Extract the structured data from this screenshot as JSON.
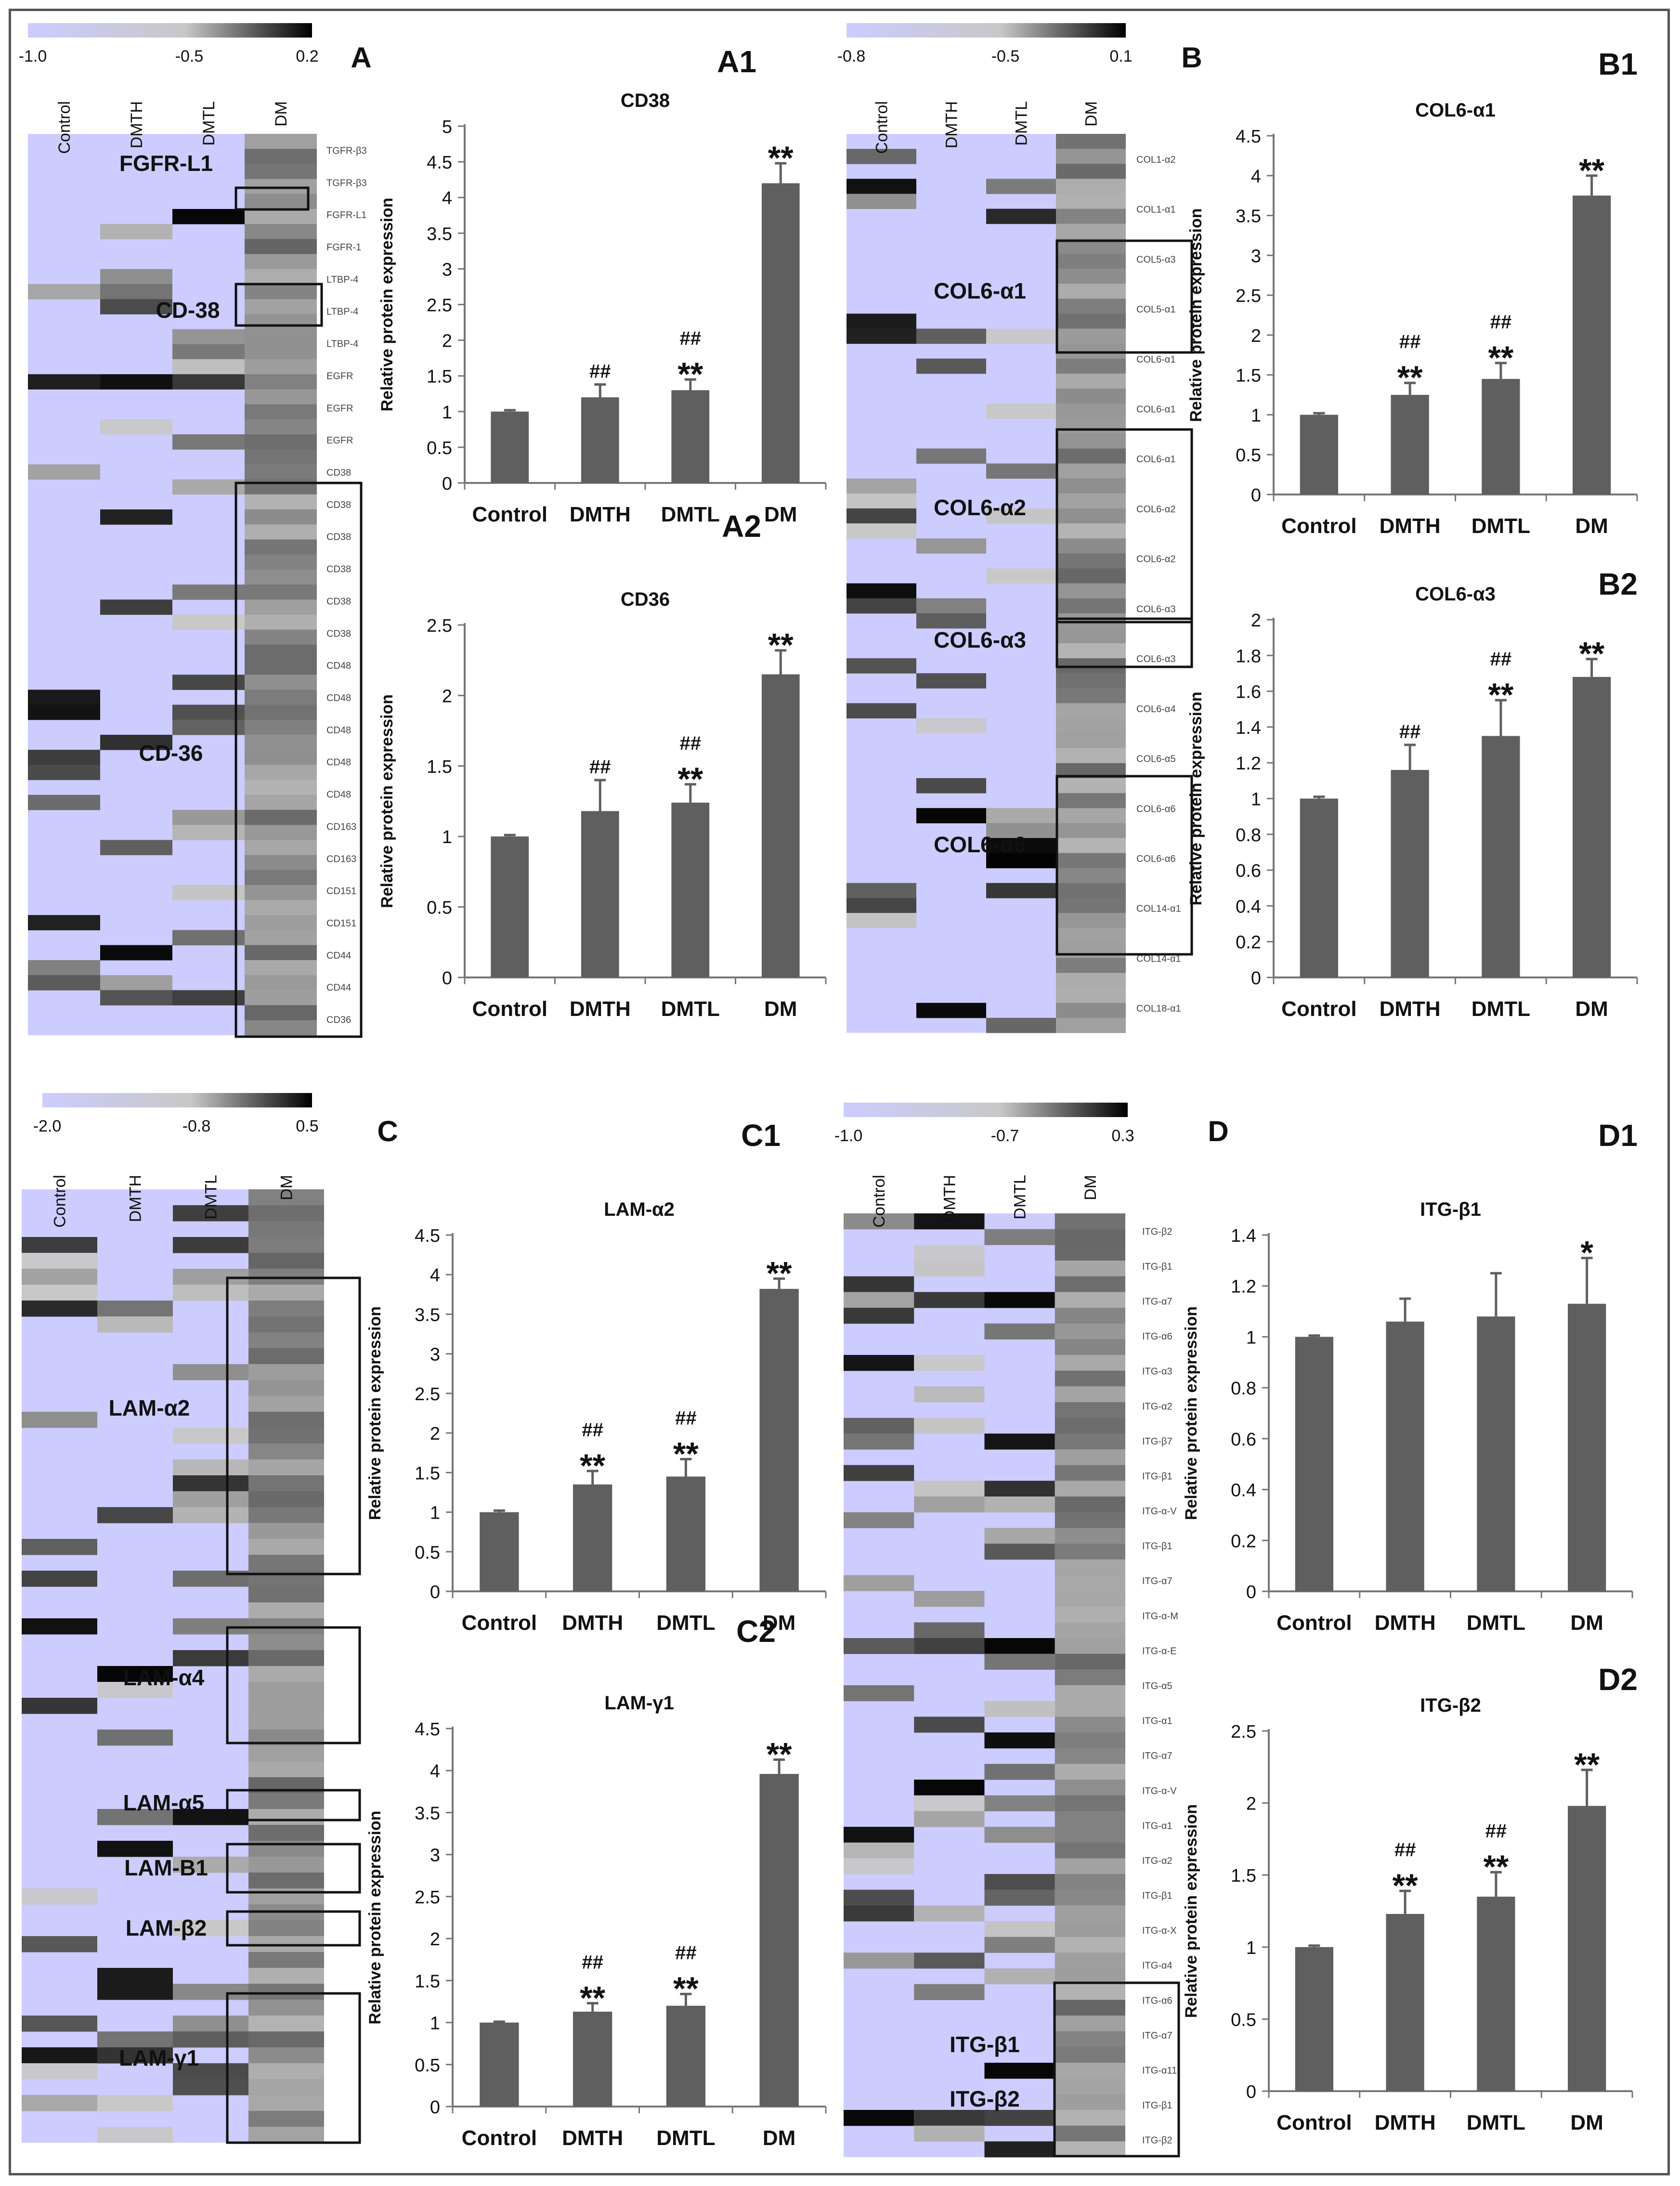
{
  "groups": [
    "Control",
    "DMTH",
    "DMTL",
    "DM"
  ],
  "colors": {
    "bar": "#5f5f5f",
    "axis": "#777777",
    "low": "#ccccff",
    "mid": "#c8c8c8",
    "high": "#000000",
    "text": "#111111"
  },
  "y_axis_label": "Relative protein expression",
  "panel_letters": {
    "A": "A",
    "B": "B",
    "C": "C",
    "D": "D"
  },
  "heatmaps": [
    {
      "id": "A",
      "scale": [
        "-1.0",
        "-0.5",
        "0.2"
      ],
      "boxes": [
        "FGFR-L1",
        "CD-38",
        "CD-36"
      ],
      "rows": [
        "TGFR-β3",
        "TGFR-β3",
        "FGFR-L1",
        "FGFR-1",
        "LTBP-4",
        "LTBP-4",
        "LTBP-4",
        "EGFR",
        "EGFR",
        "EGFR",
        "CD38",
        "CD38",
        "CD38",
        "CD38",
        "CD38",
        "CD38",
        "CD48",
        "CD48",
        "CD48",
        "CD48",
        "CD48",
        "CD163",
        "CD163",
        "CD151",
        "CD151",
        "CD44",
        "CD44",
        "CD36"
      ]
    },
    {
      "id": "B",
      "scale": [
        "-0.8",
        "-0.5",
        "0.1"
      ],
      "boxes": [
        "COL6-α1",
        "COL6-α2",
        "COL6-α3",
        "COL6-α6"
      ],
      "rows": [
        "COL1-α2",
        "COL1-α1",
        "COL5-α3",
        "COL5-α1",
        "COL6-α1",
        "COL6-α1",
        "COL6-α1",
        "COL6-α2",
        "COL6-α2",
        "COL6-α3",
        "COL6-α3",
        "COL6-α4",
        "COL6-α5",
        "COL6-α6",
        "COL6-α6",
        "COL14-α1",
        "COL14-α1",
        "COL18-α1"
      ]
    },
    {
      "id": "C",
      "scale": [
        "-2.0",
        "-0.8",
        "0.5"
      ],
      "boxes": [
        "LAM-α2",
        "LAM-α4",
        "LAM-α5",
        "LAM-B1",
        "LAM-β2",
        "LAM-γ1"
      ],
      "rows": []
    },
    {
      "id": "D",
      "scale": [
        "-1.0",
        "-0.7",
        "0.3"
      ],
      "boxes": [
        "ITG-β1",
        "ITG-β2"
      ],
      "rows": [
        "ITG-β2",
        "ITG-β1",
        "ITG-α7",
        "ITG-α6",
        "ITG-α3",
        "ITG-α2",
        "ITG-β7",
        "ITG-β1",
        "ITG-α-V",
        "ITG-β1",
        "ITG-α7",
        "ITG-α-M",
        "ITG-α-E",
        "ITG-α5",
        "ITG-α1",
        "ITG-α7",
        "ITG-α-V",
        "ITG-α1",
        "ITG-α2",
        "ITG-β1",
        "ITG-α-X",
        "ITG-α4",
        "ITG-α6",
        "ITG-α7",
        "ITG-α11",
        "ITG-β1",
        "ITG-β2"
      ]
    }
  ],
  "chart_data": [
    {
      "id": "A1",
      "type": "bar",
      "title": "CD38",
      "categories": [
        "Control",
        "DMTH",
        "DMTL",
        "DM"
      ],
      "values": [
        1.0,
        1.2,
        1.3,
        4.2
      ],
      "errors": [
        0.02,
        0.18,
        0.15,
        0.28
      ],
      "ylim": [
        0,
        5
      ],
      "yticks": [
        "0",
        "0.5",
        "1",
        "1.5",
        "2",
        "2.5",
        "3",
        "3.5",
        "4",
        "4.5",
        "5"
      ],
      "annotations": [
        [],
        [
          "##"
        ],
        [
          "##",
          "**"
        ],
        [
          "**"
        ]
      ],
      "ylabel": "Relative protein expression"
    },
    {
      "id": "A2",
      "type": "bar",
      "title": "CD36",
      "categories": [
        "Control",
        "DMTH",
        "DMTL",
        "DM"
      ],
      "values": [
        1.0,
        1.18,
        1.24,
        2.15
      ],
      "errors": [
        0.01,
        0.22,
        0.13,
        0.17
      ],
      "ylim": [
        0,
        2.5
      ],
      "yticks": [
        "0",
        "0.5",
        "1",
        "1.5",
        "2",
        "2.5"
      ],
      "annotations": [
        [],
        [
          "##"
        ],
        [
          "##",
          "**"
        ],
        [
          "**"
        ]
      ],
      "ylabel": "Relative protein expression"
    },
    {
      "id": "B1",
      "type": "bar",
      "title": "COL6-α1",
      "categories": [
        "Control",
        "DMTH",
        "DMTL",
        "DM"
      ],
      "values": [
        1.0,
        1.25,
        1.45,
        3.75
      ],
      "errors": [
        0.02,
        0.15,
        0.2,
        0.25
      ],
      "ylim": [
        0,
        4.5
      ],
      "yticks": [
        "0",
        "0.5",
        "1",
        "1.5",
        "2",
        "2.5",
        "3",
        "3.5",
        "4",
        "4.5"
      ],
      "annotations": [
        [],
        [
          "##",
          "**"
        ],
        [
          "##",
          "**"
        ],
        [
          "**"
        ]
      ],
      "ylabel": "Relative protein expression"
    },
    {
      "id": "B2",
      "type": "bar",
      "title": "COL6-α3",
      "categories": [
        "Control",
        "DMTH",
        "DMTL",
        "DM"
      ],
      "values": [
        1.0,
        1.16,
        1.35,
        1.68
      ],
      "errors": [
        0.01,
        0.14,
        0.2,
        0.1
      ],
      "ylim": [
        0,
        2
      ],
      "yticks": [
        "0",
        "0.2",
        "0.4",
        "0.6",
        "0.8",
        "1",
        "1.2",
        "1.4",
        "1.6",
        "1.8",
        "2"
      ],
      "annotations": [
        [],
        [
          "##"
        ],
        [
          "##",
          "**"
        ],
        [
          "**"
        ]
      ],
      "ylabel": "Relative protein expression"
    },
    {
      "id": "C1",
      "type": "bar",
      "title": "LAM-α2",
      "categories": [
        "Control",
        "DMTH",
        "DMTL",
        "DM"
      ],
      "values": [
        1.0,
        1.35,
        1.45,
        3.82
      ],
      "errors": [
        0.02,
        0.17,
        0.22,
        0.13
      ],
      "ylim": [
        0,
        4.5
      ],
      "yticks": [
        "0",
        "0.5",
        "1",
        "1.5",
        "2",
        "2.5",
        "3",
        "3.5",
        "4",
        "4.5"
      ],
      "annotations": [
        [],
        [
          "##",
          "**"
        ],
        [
          "##",
          "**"
        ],
        [
          "**"
        ]
      ],
      "ylabel": "Relative protein expression"
    },
    {
      "id": "C2",
      "type": "bar",
      "title": "LAM-γ1",
      "categories": [
        "Control",
        "DMTH",
        "DMTL",
        "DM"
      ],
      "values": [
        1.0,
        1.13,
        1.2,
        3.96
      ],
      "errors": [
        0.01,
        0.1,
        0.14,
        0.17
      ],
      "ylim": [
        0,
        4.5
      ],
      "yticks": [
        "0",
        "0.5",
        "1",
        "1.5",
        "2",
        "2.5",
        "3",
        "3.5",
        "4",
        "4.5"
      ],
      "annotations": [
        [],
        [
          "##",
          "**"
        ],
        [
          "##",
          "**"
        ],
        [
          "**"
        ]
      ],
      "ylabel": "Relative protein expression"
    },
    {
      "id": "D1",
      "type": "bar",
      "title": "ITG-β1",
      "categories": [
        "Control",
        "DMTH",
        "DMTL",
        "DM"
      ],
      "values": [
        1.0,
        1.06,
        1.08,
        1.13
      ],
      "errors": [
        0.005,
        0.09,
        0.17,
        0.18
      ],
      "ylim": [
        0,
        1.4
      ],
      "yticks": [
        "0",
        "0.2",
        "0.4",
        "0.6",
        "0.8",
        "1",
        "1.2",
        "1.4"
      ],
      "annotations": [
        [],
        [],
        [],
        [
          "*"
        ]
      ],
      "ylabel": "Relative protein expression"
    },
    {
      "id": "D2",
      "type": "bar",
      "title": "ITG-β2",
      "categories": [
        "Control",
        "DMTH",
        "DMTL",
        "DM"
      ],
      "values": [
        1.0,
        1.23,
        1.35,
        1.98
      ],
      "errors": [
        0.01,
        0.16,
        0.17,
        0.25
      ],
      "ylim": [
        0,
        2.5
      ],
      "yticks": [
        "0",
        "0.5",
        "1",
        "1.5",
        "2",
        "2.5"
      ],
      "annotations": [
        [],
        [
          "##",
          "**"
        ],
        [
          "##",
          "**"
        ],
        [
          "**"
        ]
      ],
      "ylabel": "Relative protein expression"
    }
  ]
}
